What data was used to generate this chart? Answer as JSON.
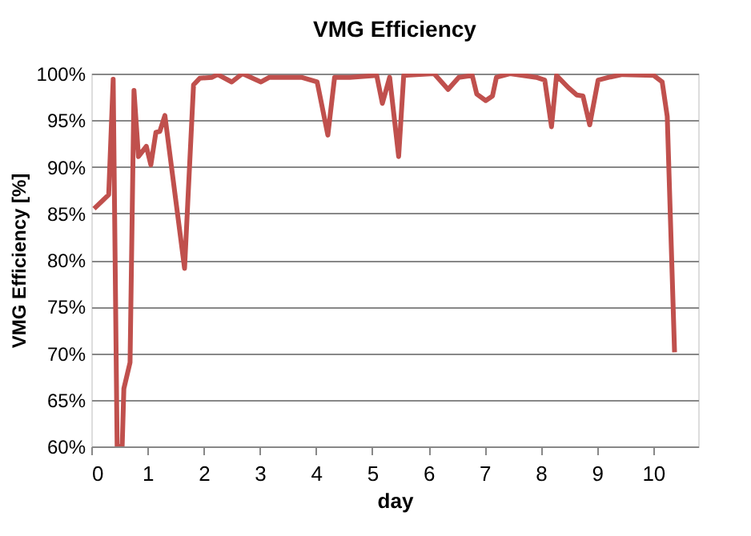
{
  "chart_data": {
    "type": "line",
    "title": "VMG Efficiency",
    "xlabel": "day",
    "ylabel": "VMG Efficiency [%]",
    "x": [
      0.05,
      0.31,
      0.39,
      0.46,
      0.55,
      0.58,
      0.69,
      0.76,
      0.84,
      0.98,
      1.06,
      1.15,
      1.22,
      1.31,
      1.66,
      1.82,
      1.93,
      2.15,
      2.25,
      2.5,
      2.69,
      3.02,
      3.17,
      3.35,
      3.74,
      4.02,
      4.21,
      4.33,
      4.6,
      5.08,
      5.18,
      5.31,
      5.47,
      5.56,
      6.1,
      6.35,
      6.54,
      6.78,
      6.86,
      7.02,
      7.14,
      7.21,
      7.45,
      7.92,
      8.07,
      8.19,
      8.28,
      8.49,
      8.64,
      8.75,
      8.87,
      9.02,
      9.21,
      9.45,
      10.01,
      10.16,
      10.25,
      10.38
    ],
    "series": [
      {
        "color": "#c0504d",
        "values": [
          85.5,
          87,
          99.4,
          60,
          60,
          66.2,
          69,
          98.2,
          91.1,
          92.2,
          90.2,
          93.7,
          93.8,
          95.5,
          79.1,
          98.8,
          99.5,
          99.6,
          99.9,
          99.1,
          100,
          99.1,
          99.6,
          99.6,
          99.6,
          99.1,
          93.4,
          99.6,
          99.6,
          99.8,
          96.8,
          99.6,
          91.1,
          99.8,
          100,
          98.3,
          99.6,
          99.8,
          97.8,
          97.1,
          97.6,
          99.6,
          100,
          99.6,
          99.3,
          94.3,
          99.8,
          98.5,
          97.7,
          97.6,
          94.5,
          99.3,
          99.6,
          99.9,
          99.8,
          99.1,
          95.4,
          70.1
        ]
      }
    ],
    "xlim": [
      0,
      10.8
    ],
    "xticks": [
      0,
      1,
      2,
      3,
      4,
      5,
      6,
      7,
      8,
      9,
      10
    ],
    "ylim": [
      60,
      100
    ],
    "yticks": [
      {
        "value": 60,
        "label": "60%"
      },
      {
        "value": 65,
        "label": "65%"
      },
      {
        "value": 70,
        "label": "70%"
      },
      {
        "value": 75,
        "label": "75%"
      },
      {
        "value": 80,
        "label": "80%"
      },
      {
        "value": 85,
        "label": "85%"
      },
      {
        "value": 90,
        "label": "90%"
      },
      {
        "value": 95,
        "label": "95%"
      },
      {
        "value": 100,
        "label": "100%"
      }
    ],
    "grid": "y",
    "marker": "none",
    "line_style": "solid"
  }
}
